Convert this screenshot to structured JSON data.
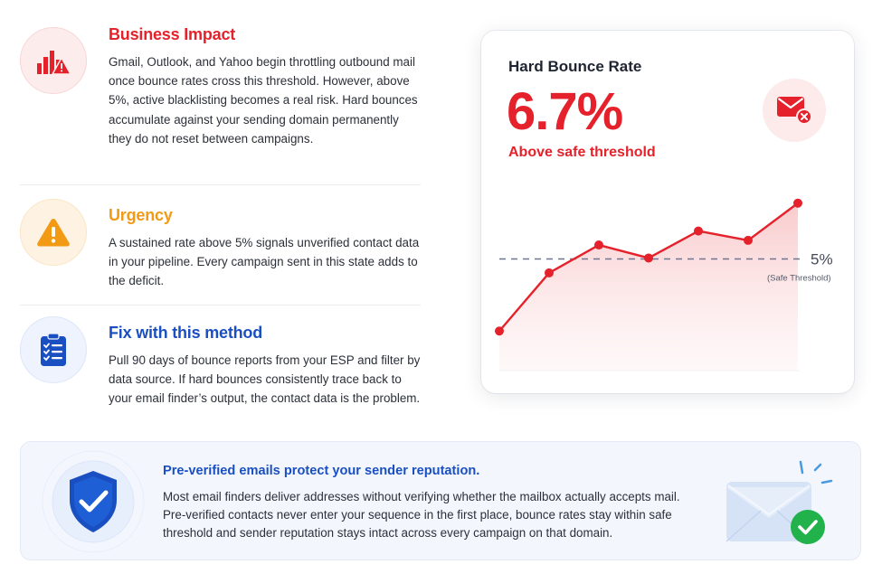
{
  "sections": [
    {
      "title": "Business Impact",
      "color": "#e5212b",
      "icon": "bar-chart-warning-icon",
      "body": "Gmail, Outlook, and Yahoo begin throttling outbound mail once bounce rates cross this threshold. However, above 5%, active blacklisting becomes a real risk. Hard bounces accumulate against your sending domain permanently they do not reset between campaigns."
    },
    {
      "title": "Urgency",
      "color": "#f39a15",
      "icon": "warning-triangle-icon",
      "body": "A sustained rate above 5% signals unverified contact data in your pipeline. Every campaign sent in this state adds to the deficit."
    },
    {
      "title": "Fix with this method",
      "color": "#1a4fc2",
      "icon": "clipboard-checklist-icon",
      "body": "Pull 90 days of bounce reports from your ESP and filter by data source. If hard bounces consistently trace back to your email finder’s output, the contact data is the problem."
    }
  ],
  "metric_card": {
    "label": "Hard Bounce Rate",
    "value": "6.7%",
    "status": "Above safe threshold",
    "icon": "mail-error-icon",
    "accent": "#e5212b"
  },
  "chart_data": {
    "type": "line",
    "series": [
      {
        "values": [
          3.45,
          4.7,
          5.3,
          5.02,
          5.6,
          5.4,
          6.2
        ]
      }
    ],
    "ylim": [
      2.6,
      6.7
    ],
    "threshold": {
      "value": 5,
      "label": "5%",
      "sublabel": "(Safe Threshold)"
    },
    "color": "#e5212b",
    "threshold_color": "#6f7591"
  },
  "banner": {
    "title": "Pre-verified emails protect your sender reputation.",
    "body": "Most email finders deliver addresses without verifying whether the mailbox actually accepts mail. Pre-verified contacts never enter your sequence in the first place, bounce rates stay within safe threshold and sender reputation stays intact across every campaign on that domain.",
    "left_icon": "shield-check-icon",
    "right_icon": "envelope-verified-icon",
    "title_color": "#1a4fc2"
  }
}
